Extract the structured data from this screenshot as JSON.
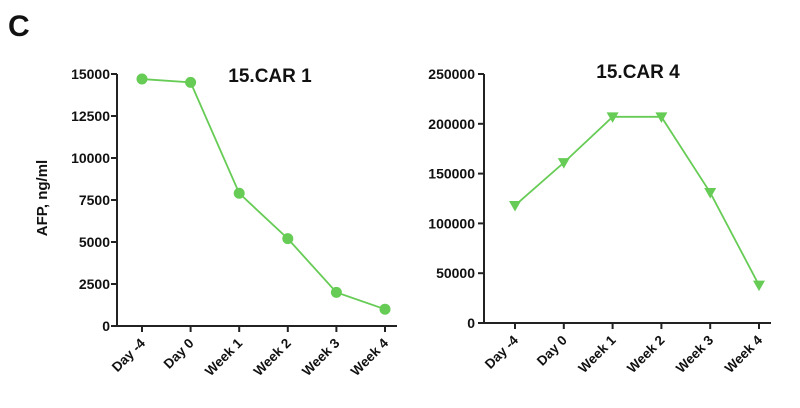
{
  "panel_label": "C",
  "chart_data": [
    {
      "type": "line",
      "title": "15.CAR 1",
      "xlabel": "",
      "ylabel": "AFP, ng/ml",
      "categories": [
        "Day -4",
        "Day 0",
        "Week 1",
        "Week 2",
        "Week 3",
        "Week 4"
      ],
      "values": [
        14700,
        14500,
        7900,
        5200,
        2000,
        1000
      ],
      "ylim": [
        0,
        15000
      ],
      "yticks": [
        0,
        2500,
        5000,
        7500,
        10000,
        12500,
        15000
      ],
      "marker": "circle",
      "color": "#66cc55",
      "grid": false,
      "legend": "none"
    },
    {
      "type": "line",
      "title": "15.CAR 4",
      "xlabel": "",
      "ylabel": "",
      "categories": [
        "Day -4",
        "Day 0",
        "Week 1",
        "Week 2",
        "Week 3",
        "Week 4"
      ],
      "values": [
        118000,
        161000,
        207000,
        207000,
        131000,
        38000
      ],
      "ylim": [
        0,
        250000
      ],
      "yticks": [
        0,
        50000,
        100000,
        150000,
        200000,
        250000
      ],
      "marker": "triangle-down",
      "color": "#66cc55",
      "grid": false,
      "legend": "none"
    }
  ]
}
